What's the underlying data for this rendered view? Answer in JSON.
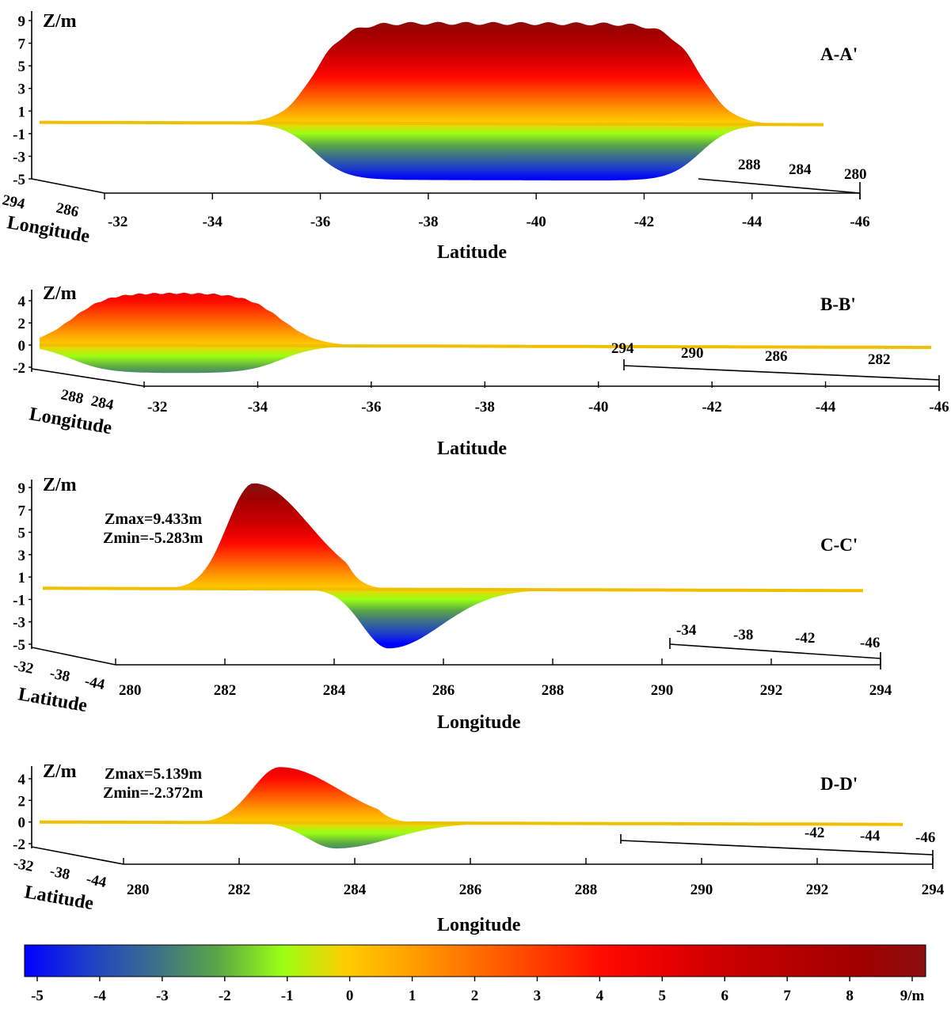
{
  "chart_data": [
    {
      "type": "surface-profile",
      "panel_label": "A-A'",
      "zlabel": "Z/m",
      "xlabel": "Latitude",
      "ylabel": "Longitude",
      "z_ticks": [
        "9",
        "7",
        "5",
        "3",
        "1",
        "-1",
        "-3",
        "-5"
      ],
      "x_ticks": [
        "-32",
        "-34",
        "-36",
        "-38",
        "-40",
        "-42",
        "-44",
        "-46"
      ],
      "y_ticks_left": [
        "294",
        "286"
      ],
      "y_ticks_right": [
        "288",
        "284",
        "280"
      ],
      "xlim": [
        -32,
        -46
      ],
      "zlim": [
        -5,
        9
      ],
      "profile": {
        "shape": "plateau",
        "x_start": -36.9,
        "x_end": -43.8,
        "zmax": 9,
        "zmin": -5
      }
    },
    {
      "type": "surface-profile",
      "panel_label": "B-B'",
      "zlabel": "Z/m",
      "xlabel": "Latitude",
      "ylabel": "Longitude",
      "z_ticks": [
        "4",
        "2",
        "0",
        "-2"
      ],
      "x_ticks": [
        "-32",
        "-34",
        "-36",
        "-38",
        "-40",
        "-42",
        "-44",
        "-46"
      ],
      "y_ticks_left": [
        "288",
        "284"
      ],
      "y_ticks_right": [
        "294",
        "290",
        "286",
        "282"
      ],
      "xlim": [
        -32,
        -46
      ],
      "zlim": [
        -2,
        4
      ],
      "profile": {
        "shape": "plateau",
        "x_start": -32.5,
        "x_end": -35.8,
        "zmax": 4.8,
        "zmin": -2.5
      }
    },
    {
      "type": "surface-profile",
      "panel_label": "C-C'",
      "zlabel": "Z/m",
      "xlabel": "Longitude",
      "ylabel": "Latitude",
      "annotation_max": "Zmax=9.433m",
      "annotation_min": "Zmin=-5.283m",
      "z_ticks": [
        "9",
        "7",
        "5",
        "3",
        "1",
        "-1",
        "-3",
        "-5"
      ],
      "x_ticks": [
        "280",
        "282",
        "284",
        "286",
        "288",
        "290",
        "292",
        "294"
      ],
      "y_ticks_left": [
        "-32",
        "-38",
        "-44"
      ],
      "y_ticks_right": [
        "-34",
        "-38",
        "-42",
        "-46"
      ],
      "xlim": [
        280,
        294
      ],
      "zlim": [
        -5,
        9
      ],
      "profile": {
        "shape": "dipole",
        "peak_x": 283.6,
        "zmax": 9.433,
        "trough_x": 285.9,
        "zmin": -5.283
      }
    },
    {
      "type": "surface-profile",
      "panel_label": "D-D'",
      "zlabel": "Z/m",
      "xlabel": "Longitude",
      "ylabel": "Latitude",
      "annotation_max": "Zmax=5.139m",
      "annotation_min": "Zmin=-2.372m",
      "z_ticks": [
        "4",
        "2",
        "0",
        "-2"
      ],
      "x_ticks": [
        "280",
        "282",
        "284",
        "286",
        "288",
        "290",
        "292",
        "294"
      ],
      "y_ticks_left": [
        "-32",
        "-38",
        "-44"
      ],
      "y_ticks_right": [
        "-42",
        "-44",
        "-46"
      ],
      "xlim": [
        280,
        294
      ],
      "zlim": [
        -2,
        4
      ],
      "profile": {
        "shape": "dipole",
        "peak_x": 283.9,
        "zmax": 5.139,
        "trough_x": 284.8,
        "zmin": -2.372
      }
    }
  ],
  "colorbar": {
    "ticks": [
      "-5",
      "-4",
      "-3",
      "-2",
      "-1",
      "0",
      "1",
      "2",
      "3",
      "4",
      "5",
      "6",
      "7",
      "8",
      "9/m"
    ],
    "range": [
      -5,
      9
    ],
    "stops": [
      {
        "v": -5,
        "c": "#0000ff"
      },
      {
        "v": -4,
        "c": "#1e40c8"
      },
      {
        "v": -3,
        "c": "#3a6e8c"
      },
      {
        "v": -2,
        "c": "#5aa646"
      },
      {
        "v": -1,
        "c": "#9aff14"
      },
      {
        "v": 0,
        "c": "#ffcc00"
      },
      {
        "v": 1,
        "c": "#ffa000"
      },
      {
        "v": 2,
        "c": "#ff6e00"
      },
      {
        "v": 3,
        "c": "#ff3c00"
      },
      {
        "v": 4,
        "c": "#ff0a00"
      },
      {
        "v": 5,
        "c": "#e60000"
      },
      {
        "v": 6,
        "c": "#c80000"
      },
      {
        "v": 7,
        "c": "#b40000"
      },
      {
        "v": 8,
        "c": "#a00000"
      },
      {
        "v": 9,
        "c": "#8c0f0f"
      }
    ]
  }
}
